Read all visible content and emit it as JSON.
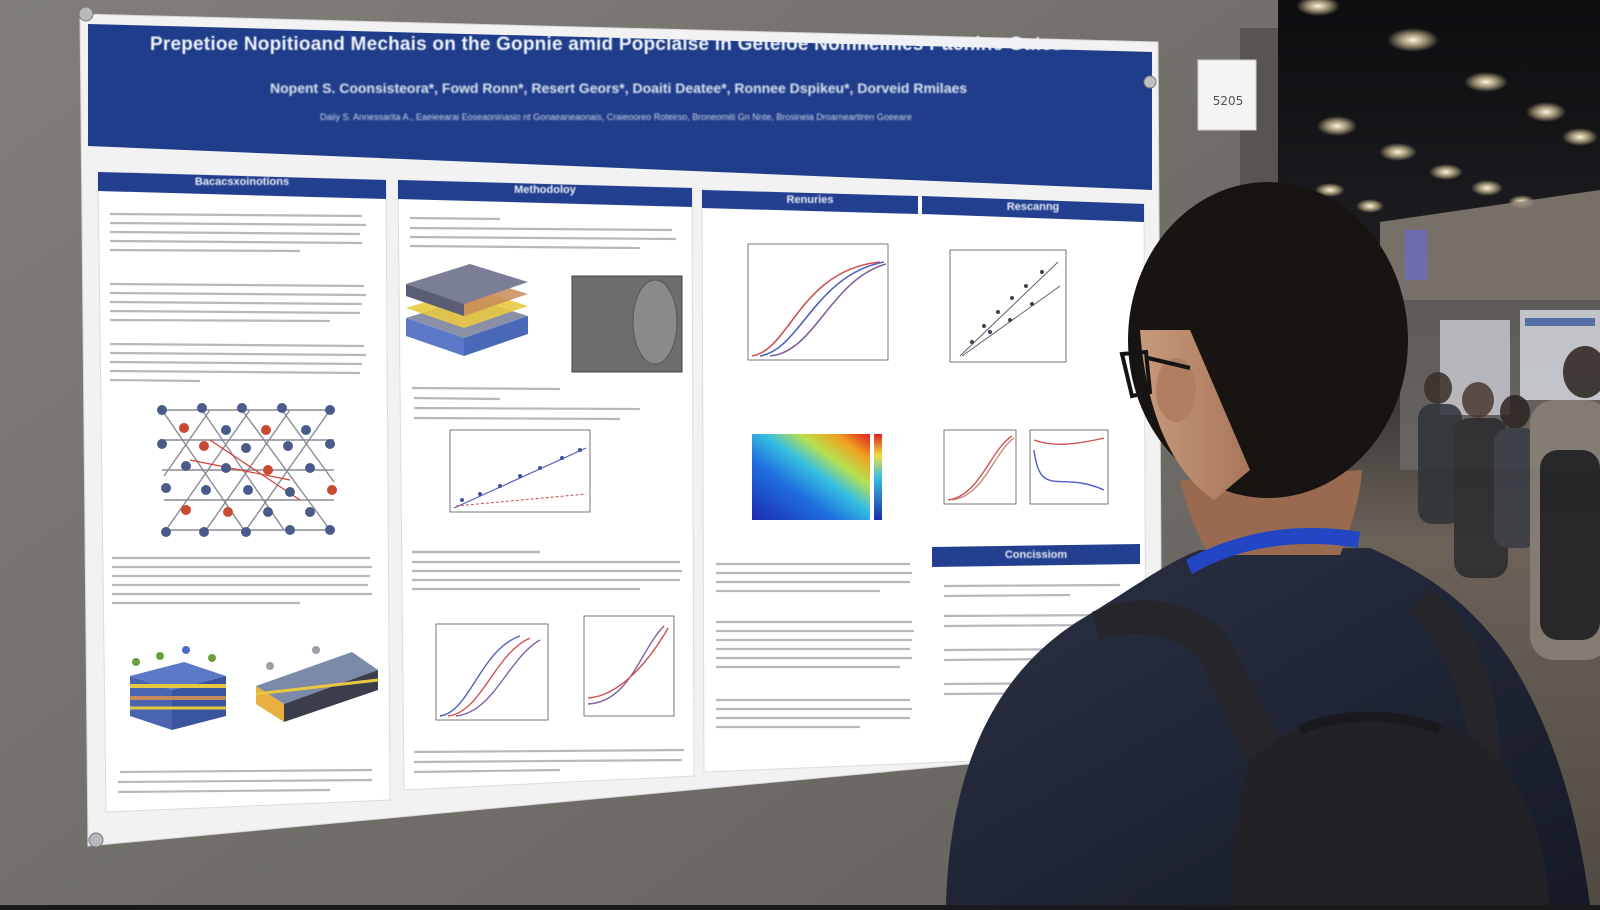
{
  "board": {
    "number": "5205"
  },
  "poster": {
    "title": "Prepetioe Nopitioand Mechais on the Gopnie amid Popclaise in Geteioe Nomheimes Pacnine Gates",
    "authors": "Nopent S. Coonsisteora*, Fowd Ronn*, Resert Geors*, Doaiti Deatee*, Ronnee Dspikeu*, Dorveid Rmilaes",
    "affiliations": "Daiiy S. Annessarita A., Eaeieearai Eoseaoninasio nt Gonaeaneaonais, Craieooreo Roteirso, Broneomiti Gn Nnte, Brosineia Droarneartiren Goeeare",
    "sections": [
      {
        "heading": "Bacacsxoinotions"
      },
      {
        "heading": "Methodoloy"
      },
      {
        "heading": "Renuries"
      },
      {
        "heading": "Rescanng"
      },
      {
        "heading": "Concissiom"
      }
    ]
  },
  "colors": {
    "poster_banner": "#1f3d8a",
    "section_banner": "#233f8f",
    "board_fabric": "#7e7a76",
    "background": "#1a1a1d",
    "lanyard": "#2346c4",
    "sweater": "#1f2535"
  }
}
